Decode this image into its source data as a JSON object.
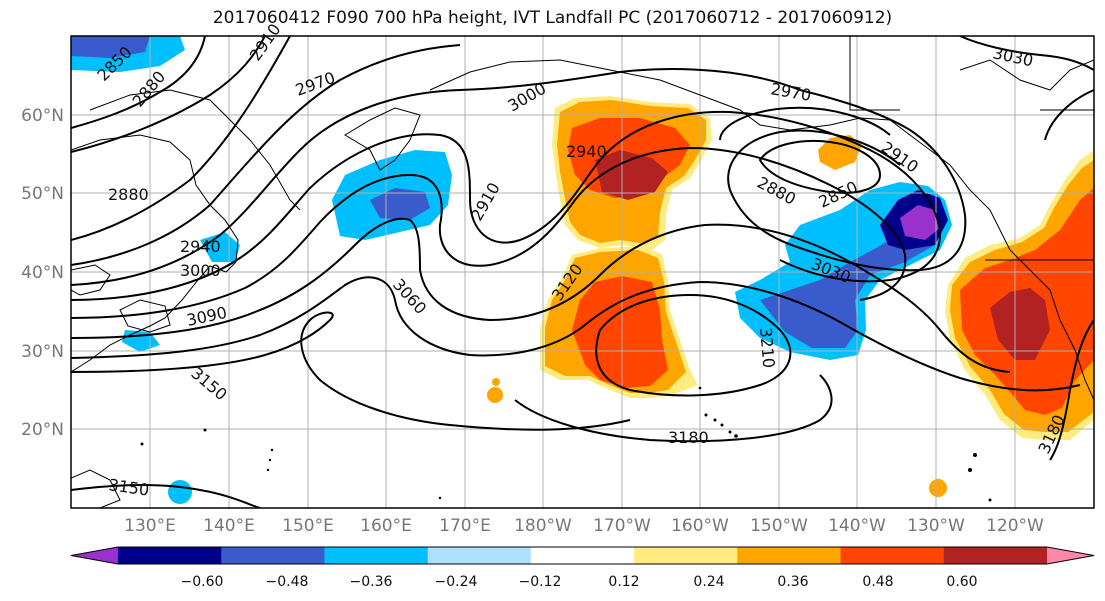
{
  "title": "2017060412 F090 700 hPa height, IVT Landfall PC (2017060712 - 2017060912)",
  "lat_labels": [
    "60°N",
    "50°N",
    "40°N",
    "30°N",
    "20°N"
  ],
  "lon_labels": [
    "130°E",
    "140°E",
    "150°E",
    "160°E",
    "170°E",
    "180°W",
    "170°W",
    "160°W",
    "150°W",
    "140°W",
    "130°W",
    "120°W"
  ],
  "contour_labels": [
    "2850",
    "2880",
    "2910",
    "2970",
    "3000",
    "3030",
    "2970",
    "2940",
    "2880",
    "2850",
    "2910",
    "2910",
    "2880",
    "2940",
    "3000",
    "3090",
    "3060",
    "3120",
    "3030",
    "3210",
    "3150",
    "3180",
    "3180",
    "3150"
  ],
  "colorbar": {
    "colors": [
      "#9932cc",
      "#00008b",
      "#3a5bcc",
      "#00bfff",
      "#b0e0ff",
      "#ffffff",
      "#ffec80",
      "#ffa500",
      "#ff4500",
      "#b22222",
      "#ff88aa"
    ],
    "tick_labels": [
      "−0.60",
      "−0.48",
      "−0.36",
      "−0.24",
      "−0.12",
      "0.12",
      "0.24",
      "0.36",
      "0.48",
      "0.60"
    ]
  }
}
